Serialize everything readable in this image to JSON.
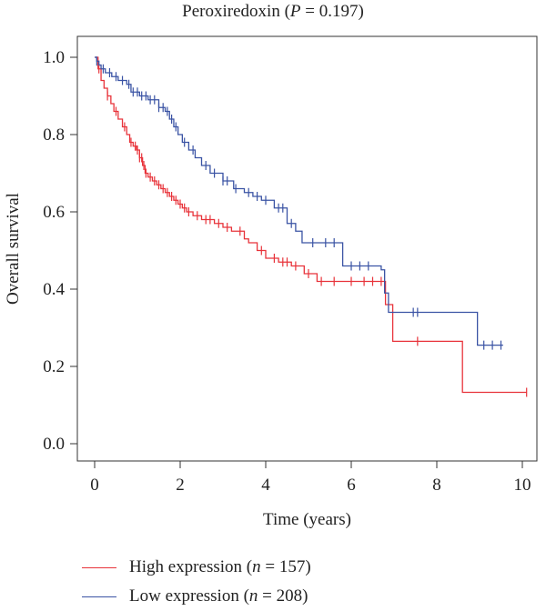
{
  "title": {
    "main": "Peroxiredoxin",
    "stat_name": "P",
    "stat_value": "0.197"
  },
  "colors": {
    "high": "#e8333a",
    "low": "#3a53a4",
    "axis": "#333333"
  },
  "chart_data": {
    "type": "line",
    "step": true,
    "title": "Peroxiredoxin (P = 0.197)",
    "xlabel": "Time (years)",
    "ylabel": "Overall survival",
    "xlim": [
      0,
      10.2
    ],
    "ylim": [
      0.0,
      1.0
    ],
    "x_ticks": [
      0,
      2,
      4,
      6,
      8,
      10
    ],
    "y_ticks": [
      0.0,
      0.2,
      0.4,
      0.6,
      0.8,
      1.0
    ],
    "x_tick_labels": [
      "0",
      "2",
      "4",
      "6",
      "8",
      "10"
    ],
    "y_tick_labels": [
      "0.0",
      "0.2",
      "0.4",
      "0.6",
      "0.8",
      "1.0"
    ],
    "legend_position": "bottom-left",
    "series": [
      {
        "name": "High expression",
        "n_label": "n",
        "n_value": "157",
        "color": "high",
        "x": [
          0,
          0.08,
          0.15,
          0.22,
          0.3,
          0.38,
          0.45,
          0.55,
          0.65,
          0.75,
          0.82,
          0.9,
          0.98,
          1.05,
          1.12,
          1.18,
          1.25,
          1.35,
          1.45,
          1.55,
          1.65,
          1.75,
          1.85,
          1.95,
          2.05,
          2.15,
          2.3,
          2.5,
          2.8,
          3.0,
          3.2,
          3.5,
          3.6,
          3.8,
          4.0,
          4.3,
          4.6,
          4.9,
          5.2,
          6.8,
          6.97,
          8.6,
          10.1
        ],
        "y": [
          1.0,
          0.97,
          0.94,
          0.92,
          0.9,
          0.88,
          0.86,
          0.84,
          0.82,
          0.8,
          0.78,
          0.77,
          0.76,
          0.74,
          0.72,
          0.7,
          0.69,
          0.68,
          0.67,
          0.66,
          0.65,
          0.64,
          0.63,
          0.62,
          0.61,
          0.6,
          0.59,
          0.58,
          0.57,
          0.56,
          0.55,
          0.53,
          0.52,
          0.5,
          0.48,
          0.47,
          0.46,
          0.44,
          0.42,
          0.36,
          0.265,
          0.133,
          0.133
        ],
        "censor_x": [
          0.1,
          0.3,
          0.5,
          0.7,
          0.85,
          0.95,
          1.0,
          1.05,
          1.1,
          1.15,
          1.2,
          1.3,
          1.4,
          1.5,
          1.6,
          1.7,
          1.8,
          1.9,
          2.0,
          2.1,
          2.2,
          2.4,
          2.6,
          2.7,
          2.9,
          3.1,
          3.4,
          3.9,
          4.2,
          4.4,
          4.5,
          4.7,
          5.0,
          5.3,
          5.6,
          6.0,
          6.3,
          6.5,
          6.7,
          7.55,
          10.1
        ]
      },
      {
        "name": "Low expression",
        "n_label": "n",
        "n_value": "208",
        "color": "low",
        "x": [
          0,
          0.05,
          0.1,
          0.15,
          0.25,
          0.4,
          0.55,
          0.75,
          0.85,
          1.05,
          1.25,
          1.5,
          1.65,
          1.75,
          1.85,
          1.95,
          2.05,
          2.2,
          2.35,
          2.5,
          2.7,
          3.0,
          3.25,
          3.5,
          3.7,
          3.9,
          4.2,
          4.5,
          4.7,
          4.85,
          5.8,
          6.7,
          6.78,
          6.87,
          8.95,
          9.55
        ],
        "y": [
          1.0,
          0.99,
          0.98,
          0.97,
          0.96,
          0.95,
          0.94,
          0.93,
          0.91,
          0.9,
          0.89,
          0.87,
          0.86,
          0.84,
          0.82,
          0.8,
          0.78,
          0.76,
          0.74,
          0.72,
          0.7,
          0.68,
          0.66,
          0.65,
          0.64,
          0.63,
          0.61,
          0.57,
          0.55,
          0.52,
          0.46,
          0.45,
          0.39,
          0.34,
          0.255,
          0.255
        ],
        "censor_x": [
          0.05,
          0.2,
          0.35,
          0.5,
          0.65,
          0.8,
          0.9,
          1.0,
          1.1,
          1.2,
          1.3,
          1.4,
          1.5,
          1.6,
          1.7,
          1.8,
          1.9,
          2.1,
          2.3,
          2.6,
          2.8,
          3.0,
          3.1,
          3.3,
          3.6,
          3.8,
          4.0,
          4.3,
          4.4,
          4.6,
          5.1,
          5.4,
          5.6,
          6.0,
          6.2,
          6.4,
          7.45,
          7.55,
          9.1,
          9.3,
          9.5
        ]
      }
    ]
  }
}
